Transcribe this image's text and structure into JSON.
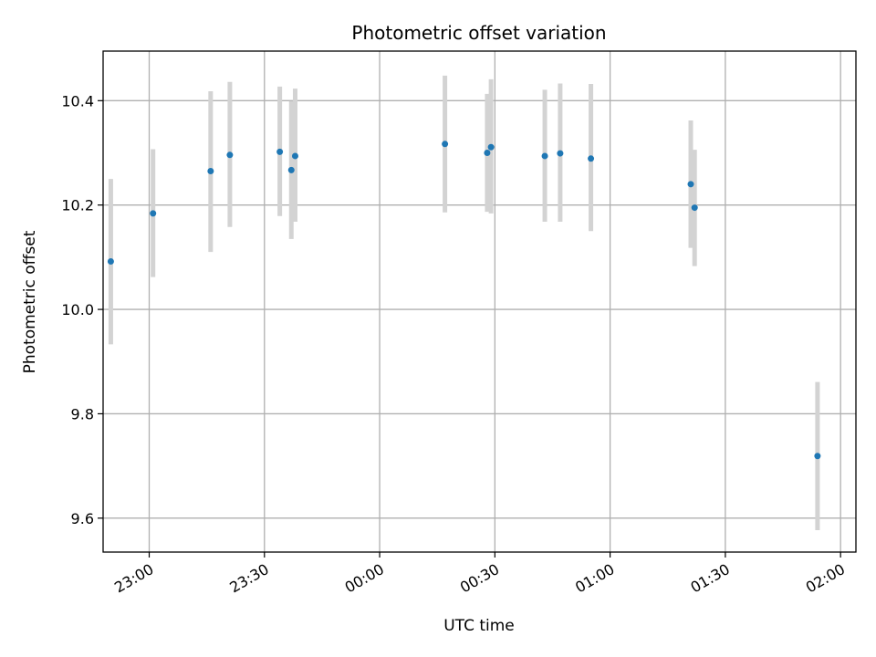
{
  "chart_data": {
    "type": "scatter",
    "title": "Photometric offset variation",
    "xlabel": "UTC time",
    "ylabel": "Photometric offset",
    "x_axis_kind": "time",
    "xlim": [
      "22:48",
      "02:04"
    ],
    "ylim": [
      9.535,
      10.495
    ],
    "x_ticks": [
      "23:00",
      "23:30",
      "00:00",
      "00:30",
      "01:00",
      "01:30",
      "02:00"
    ],
    "y_ticks": [
      9.6,
      9.8,
      10.0,
      10.2,
      10.4
    ],
    "y_tick_labels": [
      "9.6",
      "9.8",
      "10.0",
      "10.2",
      "10.4"
    ],
    "grid": true,
    "point_color": "#1f77b4",
    "errorbar_color": "#d3d3d3",
    "points": [
      {
        "x": "22:50",
        "y": 10.092,
        "ylow": 9.933,
        "yhigh": 10.25
      },
      {
        "x": "23:01",
        "y": 10.184,
        "ylow": 10.062,
        "yhigh": 10.307
      },
      {
        "x": "23:16",
        "y": 10.265,
        "ylow": 10.11,
        "yhigh": 10.418
      },
      {
        "x": "23:21",
        "y": 10.296,
        "ylow": 10.158,
        "yhigh": 10.436
      },
      {
        "x": "23:34",
        "y": 10.302,
        "ylow": 10.179,
        "yhigh": 10.427
      },
      {
        "x": "23:37",
        "y": 10.267,
        "ylow": 10.135,
        "yhigh": 10.399
      },
      {
        "x": "23:38",
        "y": 10.294,
        "ylow": 10.168,
        "yhigh": 10.423
      },
      {
        "x": "00:17",
        "y": 10.317,
        "ylow": 10.186,
        "yhigh": 10.448
      },
      {
        "x": "00:28",
        "y": 10.3,
        "ylow": 10.187,
        "yhigh": 10.413
      },
      {
        "x": "00:29",
        "y": 10.311,
        "ylow": 10.184,
        "yhigh": 10.441
      },
      {
        "x": "00:43",
        "y": 10.294,
        "ylow": 10.168,
        "yhigh": 10.421
      },
      {
        "x": "00:47",
        "y": 10.299,
        "ylow": 10.168,
        "yhigh": 10.433
      },
      {
        "x": "00:55",
        "y": 10.289,
        "ylow": 10.15,
        "yhigh": 10.432
      },
      {
        "x": "01:21",
        "y": 10.24,
        "ylow": 10.118,
        "yhigh": 10.362
      },
      {
        "x": "01:22",
        "y": 10.195,
        "ylow": 10.083,
        "yhigh": 10.306
      },
      {
        "x": "01:54",
        "y": 9.719,
        "ylow": 9.577,
        "yhigh": 9.861
      }
    ]
  }
}
